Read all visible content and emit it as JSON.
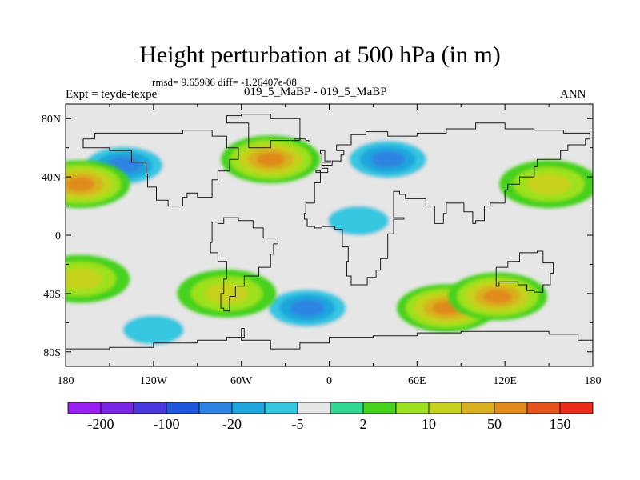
{
  "chart_data": {
    "type": "heatmap",
    "title": "Height perturbation at 500 hPa (in m)",
    "stats_text": "rmsd= 9.65986 diff= -1.26407e-08",
    "subtitle": "019_5_MaBP - 019_5_MaBP",
    "left_label": "Expt = teyde-texpe",
    "right_label": "ANN",
    "x_ticks": [
      {
        "lon": -180,
        "label": "180"
      },
      {
        "lon": -120,
        "label": "120W"
      },
      {
        "lon": -60,
        "label": "60W"
      },
      {
        "lon": 0,
        "label": "0"
      },
      {
        "lon": 60,
        "label": "60E"
      },
      {
        "lon": 120,
        "label": "120E"
      },
      {
        "lon": 180,
        "label": "180"
      }
    ],
    "y_ticks": [
      {
        "lat": 80,
        "label": "80N"
      },
      {
        "lat": 40,
        "label": "40N"
      },
      {
        "lat": 0,
        "label": "0"
      },
      {
        "lat": -40,
        "label": "40S"
      },
      {
        "lat": -80,
        "label": "80S"
      }
    ],
    "xlim": [
      -180,
      180
    ],
    "ylim": [
      -90,
      90
    ],
    "colorbar": {
      "colors": [
        "#9a1ff2",
        "#7b25e8",
        "#4a37e0",
        "#1f57dc",
        "#2e84e2",
        "#1ea6dd",
        "#34c6e0",
        "#e6e6e6",
        "#2ed890",
        "#45d11c",
        "#9ce11e",
        "#c6d11c",
        "#d8b01e",
        "#e08a1c",
        "#e8521c",
        "#ee2a18"
      ],
      "labels": [
        {
          "after_box": 1,
          "text": "-200"
        },
        {
          "after_box": 3,
          "text": "-100"
        },
        {
          "after_box": 5,
          "text": "-20"
        },
        {
          "after_box": 7,
          "text": "-5"
        },
        {
          "after_box": 9,
          "text": "2"
        },
        {
          "after_box": 11,
          "text": "10"
        },
        {
          "after_box": 13,
          "text": "50"
        },
        {
          "after_box": 15,
          "text": "150"
        }
      ]
    },
    "blobs": [
      {
        "lon": -140,
        "lat": 48,
        "value": -20
      },
      {
        "lon": -40,
        "lat": 52,
        "value": 50
      },
      {
        "lon": -15,
        "lat": -50,
        "value": -20
      },
      {
        "lon": 80,
        "lat": -50,
        "value": 50
      },
      {
        "lon": 115,
        "lat": -42,
        "value": 50
      },
      {
        "lon": 40,
        "lat": 52,
        "value": -20
      },
      {
        "lon": -170,
        "lat": 35,
        "value": 50
      },
      {
        "lon": 150,
        "lat": 35,
        "value": 10
      },
      {
        "lon": -170,
        "lat": -30,
        "value": 10
      },
      {
        "lon": -70,
        "lat": -40,
        "value": 10
      },
      {
        "lon": -120,
        "lat": -65,
        "value": -5
      },
      {
        "lon": 20,
        "lat": 10,
        "value": -5
      }
    ]
  }
}
